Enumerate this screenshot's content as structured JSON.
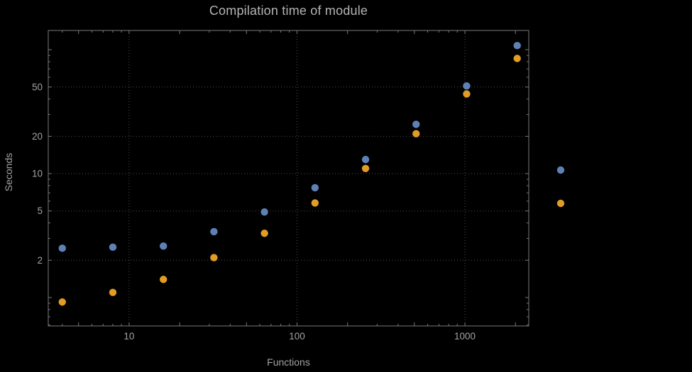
{
  "title": "Compilation time of module",
  "colors": {
    "background": "#000000",
    "frame": "#7a7a7a",
    "grid": "#4f4f4f",
    "text": "#a3a3a3",
    "title_text": "#b3b3b3",
    "series_blue": "#5e81b5",
    "series_orange": "#e19c24"
  },
  "chart_data": {
    "type": "scatter",
    "title": "Compilation time of module",
    "xlabel": "Functions",
    "ylabel": "Seconds",
    "x_scale": "log",
    "y_scale": "log",
    "grid": "dotted",
    "x": [
      4,
      8,
      16,
      32,
      64,
      128,
      256,
      512,
      1024,
      2048
    ],
    "series": [
      {
        "name": "blue-series",
        "color": "#5e81b5",
        "values": [
          2.5,
          2.55,
          2.6,
          3.4,
          4.9,
          7.7,
          13,
          25,
          51,
          108
        ]
      },
      {
        "name": "orange-series",
        "color": "#e19c24",
        "values": [
          0.92,
          1.1,
          1.4,
          2.1,
          3.3,
          5.8,
          11,
          21,
          44,
          85
        ]
      }
    ],
    "x_ticks": [
      10,
      100,
      1000
    ],
    "y_ticks": [
      2,
      5,
      10,
      20,
      50
    ],
    "xlim": [
      3.3,
      2400
    ],
    "ylim": [
      0.59,
      143
    ],
    "legend_position": "right-outside"
  },
  "legend": {
    "markers": [
      {
        "name": "blue-series-marker",
        "color": "#5e81b5"
      },
      {
        "name": "orange-series-marker",
        "color": "#e19c24"
      }
    ]
  }
}
